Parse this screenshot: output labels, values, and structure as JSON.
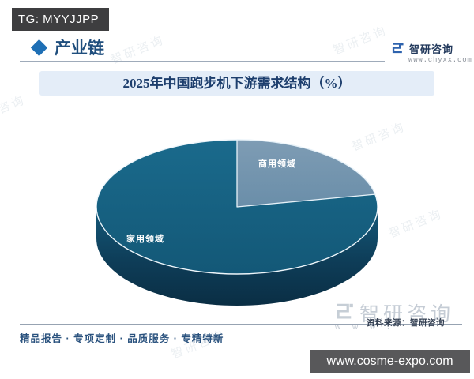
{
  "badges": {
    "tg": "TG: MYYJJPP",
    "bottom_banner": "www.cosme-expo.com"
  },
  "header": {
    "section_title": "产业链",
    "brand_name": "智研咨询",
    "brand_site": "www.chyxx.com"
  },
  "chart": {
    "title": "2025年中国跑步机下游需求结构（%）"
  },
  "chart_data": {
    "type": "pie",
    "style": "3d",
    "title": "2025年中国跑步机下游需求结构（%）",
    "categories": [
      "家用领域",
      "商用领域"
    ],
    "values": [
      78,
      22
    ],
    "values_note": "chart shows category labels only, no numeric data labels; values estimated from slice angles",
    "colors": [
      "#155e80",
      "#7394ae"
    ],
    "legend": "none",
    "data_labels": [
      "家用领域",
      "商用领域"
    ]
  },
  "footer": {
    "source": "资料来源：智研咨询",
    "tagline": "精品报告 · 专项定制 · 品质服务 · 专精特新"
  },
  "watermark": {
    "brand": "智研咨询",
    "www_fragment": "w w w ."
  },
  "colors": {
    "accent_blue": "#1e6fb5",
    "heading_navy": "#1f4e7d",
    "title_bar_bg": "#e4edf8",
    "pie_home": "#155e80",
    "pie_commercial": "#7394ae",
    "pie_side_dark": "#0a2e44",
    "tg_badge_bg": "#3e3e40",
    "banner_bg": "#58585a"
  }
}
